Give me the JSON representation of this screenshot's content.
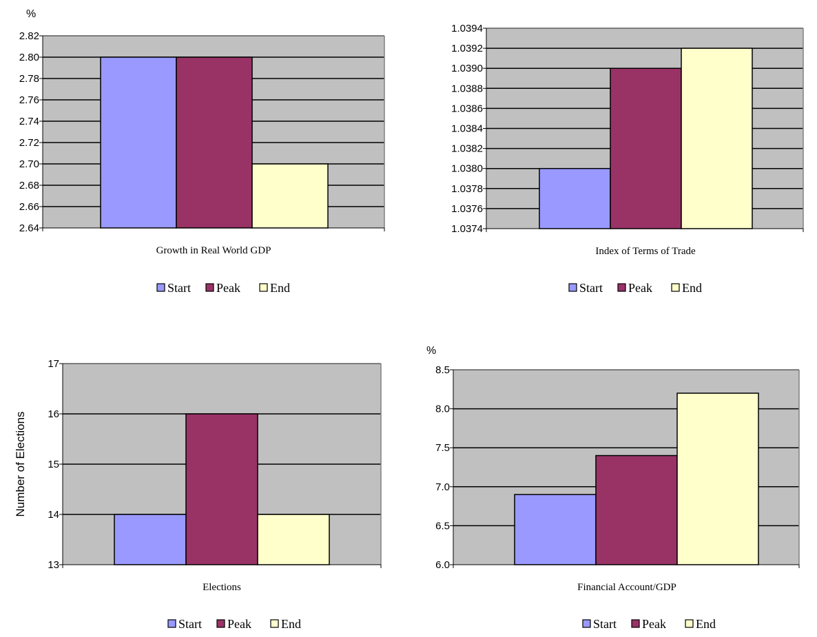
{
  "colors": {
    "plot_background": "#c0c0c0",
    "start": "#9999ff",
    "peak": "#993366",
    "end": "#ffffcc",
    "grid": "#000000"
  },
  "legend": {
    "placement": "bottom-center"
  },
  "chart_data": [
    {
      "type": "bar",
      "title": "",
      "unit_label": "%",
      "xlabel": "Growth in Real World GDP",
      "ylabel": "",
      "categories": [
        "Start",
        "Peak",
        "End"
      ],
      "values": [
        2.8,
        2.8,
        2.7
      ],
      "ylim": [
        2.64,
        2.82
      ],
      "yticks": [
        "2.64",
        "2.66",
        "2.68",
        "2.70",
        "2.72",
        "2.74",
        "2.76",
        "2.78",
        "2.80",
        "2.82"
      ],
      "grid": true,
      "legend": [
        "Start",
        "Peak",
        "End"
      ]
    },
    {
      "type": "bar",
      "title": "",
      "unit_label": "",
      "xlabel": "Index of Terms of Trade",
      "ylabel": "",
      "categories": [
        "Start",
        "Peak",
        "End"
      ],
      "values": [
        1.038,
        1.039,
        1.0392
      ],
      "ylim": [
        1.0374,
        1.0394
      ],
      "yticks": [
        "1.0374",
        "1.0376",
        "1.0378",
        "1.0380",
        "1.0382",
        "1.0384",
        "1.0386",
        "1.0388",
        "1.0390",
        "1.0392",
        "1.0394"
      ],
      "grid": true,
      "legend": [
        "Start",
        "Peak",
        "End"
      ]
    },
    {
      "type": "bar",
      "title": "",
      "unit_label": "",
      "xlabel": "Elections",
      "ylabel": "Number of Elections",
      "categories": [
        "Start",
        "Peak",
        "End"
      ],
      "values": [
        14,
        16,
        14
      ],
      "ylim": [
        13,
        17
      ],
      "yticks": [
        "13",
        "14",
        "15",
        "16",
        "17"
      ],
      "grid": true,
      "legend": [
        "Start",
        "Peak",
        "End"
      ]
    },
    {
      "type": "bar",
      "title": "",
      "unit_label": "%",
      "xlabel": "Financial Account/GDP",
      "ylabel": "",
      "categories": [
        "Start",
        "Peak",
        "End"
      ],
      "values": [
        6.9,
        7.4,
        8.2
      ],
      "ylim": [
        6.0,
        8.5
      ],
      "yticks": [
        "6.0",
        "6.5",
        "7.0",
        "7.5",
        "8.0",
        "8.5"
      ],
      "grid": true,
      "legend": [
        "Start",
        "Peak",
        "End"
      ]
    }
  ]
}
